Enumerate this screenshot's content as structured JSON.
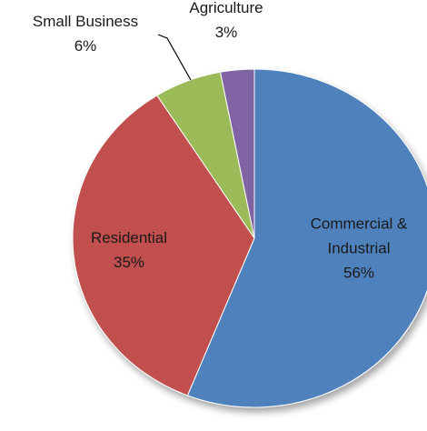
{
  "chart_data": {
    "type": "pie",
    "title": "",
    "legend": "none",
    "slices": [
      {
        "label_lines": [
          "Commercial &",
          "Industrial"
        ],
        "value": 56,
        "value_label": "56%",
        "color": "#4f81bd"
      },
      {
        "label_lines": [
          "Residential"
        ],
        "value": 35,
        "value_label": "35%",
        "color": "#c0504d"
      },
      {
        "label_lines": [
          "Small Business"
        ],
        "value": 6,
        "value_label": "6%",
        "color": "#9bbb59"
      },
      {
        "label_lines": [
          "Agriculture"
        ],
        "value": 3,
        "value_label": "3%",
        "color": "#8064a2"
      }
    ]
  }
}
